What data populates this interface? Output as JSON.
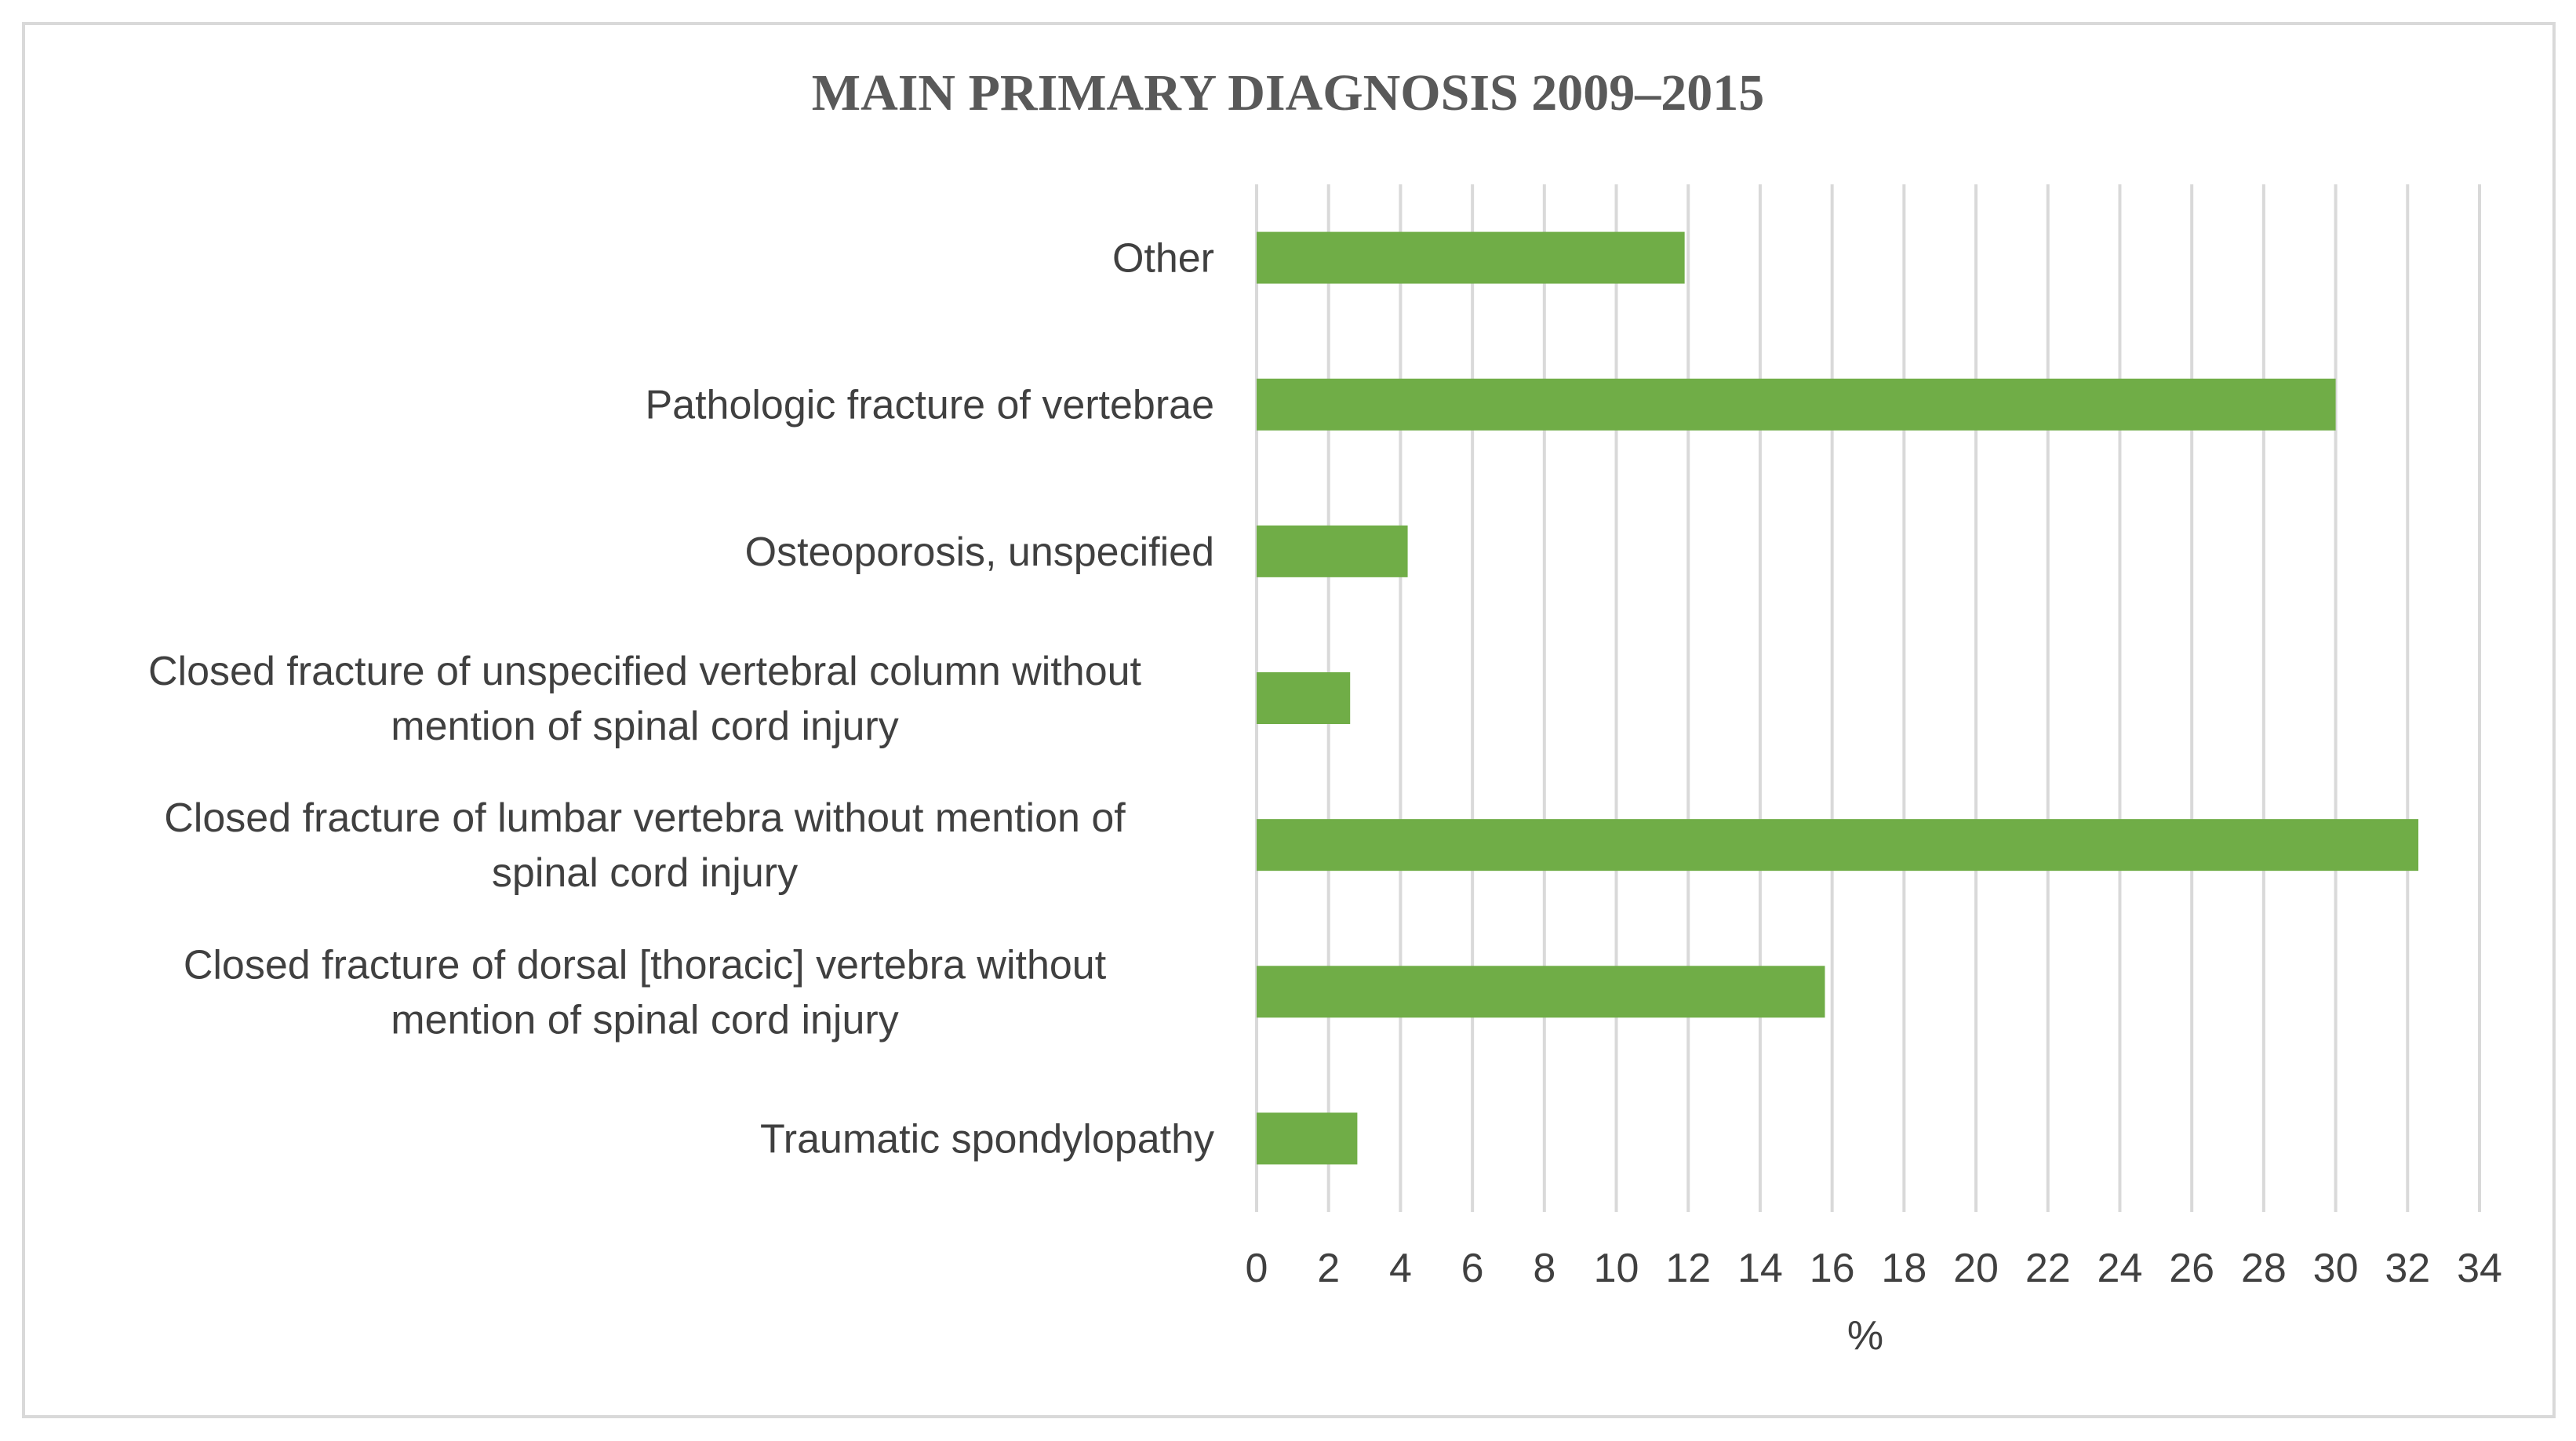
{
  "chart_data": {
    "type": "bar",
    "orientation": "horizontal",
    "title": "MAIN PRIMARY DIAGNOSIS 2009–2015",
    "xlabel": "%",
    "ylabel": "",
    "xlim": [
      0,
      34
    ],
    "x_ticks": [
      "0",
      "2",
      "4",
      "6",
      "8",
      "10",
      "12",
      "14",
      "16",
      "18",
      "20",
      "22",
      "24",
      "26",
      "28",
      "30",
      "32",
      "34"
    ],
    "grid": "vertical",
    "legend": "none",
    "bar_color": "#70ad47",
    "categories": [
      [
        "Other"
      ],
      [
        "Pathologic fracture of vertebrae"
      ],
      [
        "Osteoporosis, unspecified"
      ],
      [
        "Closed fracture of unspecified vertebral column without",
        "mention of spinal cord injury"
      ],
      [
        "Closed fracture of lumbar vertebra without mention of",
        "spinal cord injury"
      ],
      [
        "Closed fracture of dorsal [thoracic] vertebra without",
        "mention of spinal cord injury"
      ],
      [
        "Traumatic spondylopathy"
      ]
    ],
    "values": [
      11.9,
      30,
      4.2,
      2.6,
      32.3,
      15.8,
      2.8
    ]
  }
}
